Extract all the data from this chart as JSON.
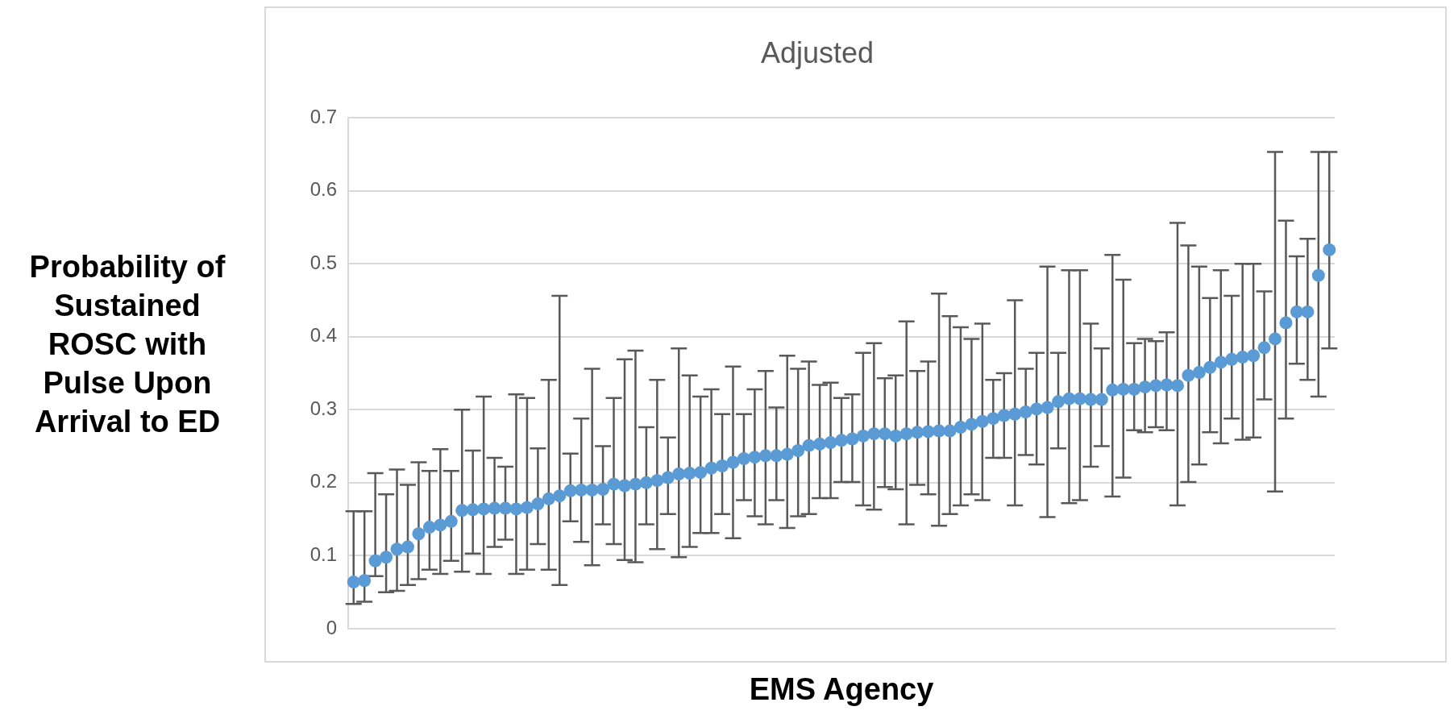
{
  "chart_data": {
    "type": "scatter",
    "title": "Adjusted",
    "xlabel": "EMS Agency",
    "ylabel": "Probability of Sustained ROSC with Pulse Upon Arrival to ED",
    "categories": [
      null,
      null,
      null,
      null,
      null,
      null,
      null,
      null,
      null,
      null,
      null,
      null,
      null,
      null,
      null,
      null,
      null,
      null,
      null,
      null,
      null,
      null,
      null,
      null,
      null,
      null,
      null,
      null,
      null,
      null,
      null,
      null,
      null,
      null,
      null,
      null,
      null,
      null,
      null,
      null,
      null,
      null,
      null,
      null,
      null,
      null,
      null,
      null,
      null,
      null,
      null,
      null,
      null,
      null,
      null,
      null,
      null,
      null,
      null,
      null,
      null,
      null,
      null,
      null,
      null,
      null,
      null,
      null,
      null,
      null,
      null,
      null,
      null,
      null,
      null,
      null,
      null,
      null,
      null,
      null,
      null,
      null,
      null,
      null,
      null,
      null,
      null,
      null,
      null,
      null,
      null
    ],
    "values": [
      0.064,
      0.066,
      0.093,
      0.098,
      0.109,
      0.112,
      0.13,
      0.139,
      0.142,
      0.147,
      0.162,
      0.163,
      0.164,
      0.165,
      0.165,
      0.164,
      0.166,
      0.171,
      0.178,
      0.182,
      0.189,
      0.19,
      0.19,
      0.191,
      0.198,
      0.196,
      0.198,
      0.2,
      0.203,
      0.207,
      0.212,
      0.213,
      0.214,
      0.22,
      0.223,
      0.228,
      0.233,
      0.235,
      0.237,
      0.237,
      0.239,
      0.244,
      0.251,
      0.253,
      0.255,
      0.258,
      0.26,
      0.264,
      0.267,
      0.267,
      0.264,
      0.267,
      0.269,
      0.27,
      0.271,
      0.271,
      0.276,
      0.28,
      0.284,
      0.288,
      0.292,
      0.294,
      0.297,
      0.301,
      0.303,
      0.311,
      0.315,
      0.315,
      0.314,
      0.314,
      0.327,
      0.328,
      0.328,
      0.331,
      0.333,
      0.334,
      0.333,
      0.347,
      0.351,
      0.358,
      0.365,
      0.369,
      0.372,
      0.374,
      0.385,
      0.397,
      0.419,
      0.434,
      0.434,
      0.484,
      0.519
    ],
    "errors": [
      [
        0.034,
        0.161
      ],
      [
        0.037,
        0.161
      ],
      [
        0.072,
        0.213
      ],
      [
        0.05,
        0.184
      ],
      [
        0.052,
        0.218
      ],
      [
        0.06,
        0.197
      ],
      [
        0.068,
        0.228
      ],
      [
        0.081,
        0.216
      ],
      [
        0.075,
        0.246
      ],
      [
        0.093,
        0.216
      ],
      [
        0.078,
        0.3
      ],
      [
        0.103,
        0.244
      ],
      [
        0.075,
        0.318
      ],
      [
        0.112,
        0.234
      ],
      [
        0.122,
        0.222
      ],
      [
        0.075,
        0.321
      ],
      [
        0.081,
        0.316
      ],
      [
        0.116,
        0.247
      ],
      [
        0.081,
        0.341
      ],
      [
        0.06,
        0.456
      ],
      [
        0.147,
        0.24
      ],
      [
        0.119,
        0.288
      ],
      [
        0.087,
        0.356
      ],
      [
        0.143,
        0.25
      ],
      [
        0.116,
        0.316
      ],
      [
        0.094,
        0.369
      ],
      [
        0.091,
        0.381
      ],
      [
        0.143,
        0.276
      ],
      [
        0.109,
        0.341
      ],
      [
        0.157,
        0.262
      ],
      [
        0.098,
        0.384
      ],
      [
        0.112,
        0.347
      ],
      [
        0.131,
        0.318
      ],
      [
        0.131,
        0.328
      ],
      [
        0.157,
        0.294
      ],
      [
        0.124,
        0.359
      ],
      [
        0.176,
        0.294
      ],
      [
        0.154,
        0.328
      ],
      [
        0.143,
        0.353
      ],
      [
        0.176,
        0.303
      ],
      [
        0.138,
        0.374
      ],
      [
        0.154,
        0.356
      ],
      [
        0.157,
        0.366
      ],
      [
        0.179,
        0.334
      ],
      [
        0.179,
        0.337
      ],
      [
        0.201,
        0.316
      ],
      [
        0.201,
        0.321
      ],
      [
        0.169,
        0.378
      ],
      [
        0.163,
        0.391
      ],
      [
        0.194,
        0.343
      ],
      [
        0.191,
        0.347
      ],
      [
        0.143,
        0.421
      ],
      [
        0.197,
        0.353
      ],
      [
        0.184,
        0.366
      ],
      [
        0.141,
        0.459
      ],
      [
        0.157,
        0.428
      ],
      [
        0.169,
        0.413
      ],
      [
        0.184,
        0.397
      ],
      [
        0.176,
        0.418
      ],
      [
        0.234,
        0.341
      ],
      [
        0.234,
        0.35
      ],
      [
        0.169,
        0.45
      ],
      [
        0.238,
        0.356
      ],
      [
        0.225,
        0.378
      ],
      [
        0.153,
        0.496
      ],
      [
        0.247,
        0.378
      ],
      [
        0.172,
        0.491
      ],
      [
        0.176,
        0.491
      ],
      [
        0.222,
        0.418
      ],
      [
        0.25,
        0.384
      ],
      [
        0.181,
        0.512
      ],
      [
        0.207,
        0.478
      ],
      [
        0.272,
        0.391
      ],
      [
        0.269,
        0.397
      ],
      [
        0.276,
        0.394
      ],
      [
        0.272,
        0.406
      ],
      [
        0.169,
        0.556
      ],
      [
        0.201,
        0.525
      ],
      [
        0.225,
        0.496
      ],
      [
        0.269,
        0.453
      ],
      [
        0.254,
        0.491
      ],
      [
        0.288,
        0.456
      ],
      [
        0.259,
        0.5
      ],
      [
        0.262,
        0.5
      ],
      [
        0.314,
        0.462
      ],
      [
        0.188,
        0.653
      ],
      [
        0.288,
        0.559
      ],
      [
        0.363,
        0.51
      ],
      [
        0.341,
        0.534
      ],
      [
        0.318,
        0.653
      ],
      [
        0.384,
        0.653
      ]
    ],
    "color": "#5b9bd5",
    "marker": "circle",
    "ylim": [
      0,
      0.7
    ],
    "yticks": [
      0,
      0.1,
      0.2,
      0.3,
      0.4,
      0.5,
      0.6,
      0.7
    ],
    "tick_labels": "y",
    "grid": "y",
    "legend": false
  }
}
